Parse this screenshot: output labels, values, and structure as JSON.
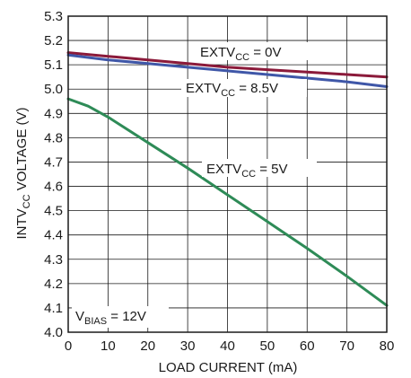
{
  "chart_data": {
    "type": "line",
    "xlabel": "LOAD CURRENT (mA)",
    "ylabel_parts": [
      "INTV",
      "CC",
      " VOLTAGE (V)"
    ],
    "xlim": [
      0,
      80
    ],
    "ylim": [
      4.0,
      5.3
    ],
    "xticks": [
      "0",
      "10",
      "20",
      "30",
      "40",
      "50",
      "60",
      "70",
      "80"
    ],
    "yticks": [
      "4.0",
      "4.1",
      "4.2",
      "4.3",
      "4.4",
      "4.5",
      "4.6",
      "4.7",
      "4.8",
      "4.9",
      "5.0",
      "5.1",
      "5.2",
      "5.3"
    ],
    "grid": true,
    "series": [
      {
        "label_parts": [
          "EXTV",
          "CC",
          " = 0V"
        ],
        "color": "#8b1a3a",
        "x": [
          0,
          10,
          20,
          30,
          40,
          50,
          60,
          70,
          80
        ],
        "y": [
          5.15,
          5.135,
          5.12,
          5.105,
          5.09,
          5.08,
          5.07,
          5.06,
          5.05
        ]
      },
      {
        "label_parts": [
          "EXTV",
          "CC",
          " = 8.5V"
        ],
        "color": "#3f57a8",
        "x": [
          0,
          10,
          20,
          30,
          40,
          50,
          60,
          70,
          80
        ],
        "y": [
          5.14,
          5.12,
          5.105,
          5.09,
          5.075,
          5.06,
          5.045,
          5.03,
          5.01
        ]
      },
      {
        "label_parts": [
          "EXTV",
          "CC",
          " = 5V"
        ],
        "color": "#2e8b57",
        "x": [
          0,
          5,
          10,
          20,
          30,
          40,
          50,
          60,
          70,
          80
        ],
        "y": [
          4.96,
          4.93,
          4.885,
          4.78,
          4.675,
          4.565,
          4.455,
          4.345,
          4.23,
          4.11
        ]
      }
    ],
    "condition_parts": [
      "V",
      "BIAS",
      " = 12V"
    ]
  }
}
